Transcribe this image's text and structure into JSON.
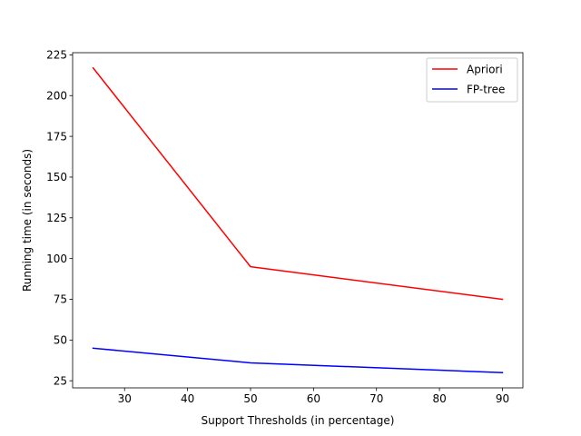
{
  "chart_data": {
    "type": "line",
    "title": "",
    "xlabel": "Support Thresholds (in percentage)",
    "ylabel": "Running time (in seconds)",
    "x": [
      25,
      50,
      90
    ],
    "series": [
      {
        "name": "Apriori",
        "values": [
          217,
          95,
          75
        ],
        "color": "#ff0000"
      },
      {
        "name": "FP-tree",
        "values": [
          45,
          36,
          30
        ],
        "color": "#0000ff"
      }
    ],
    "xlim": [
      21.75,
      93.25
    ],
    "ylim": [
      20.65,
      226.35
    ],
    "xticks": [
      30,
      40,
      50,
      60,
      70,
      80,
      90
    ],
    "yticks": [
      25,
      50,
      75,
      100,
      125,
      150,
      175,
      200,
      225
    ],
    "grid": false,
    "legend_position": "top-right"
  }
}
